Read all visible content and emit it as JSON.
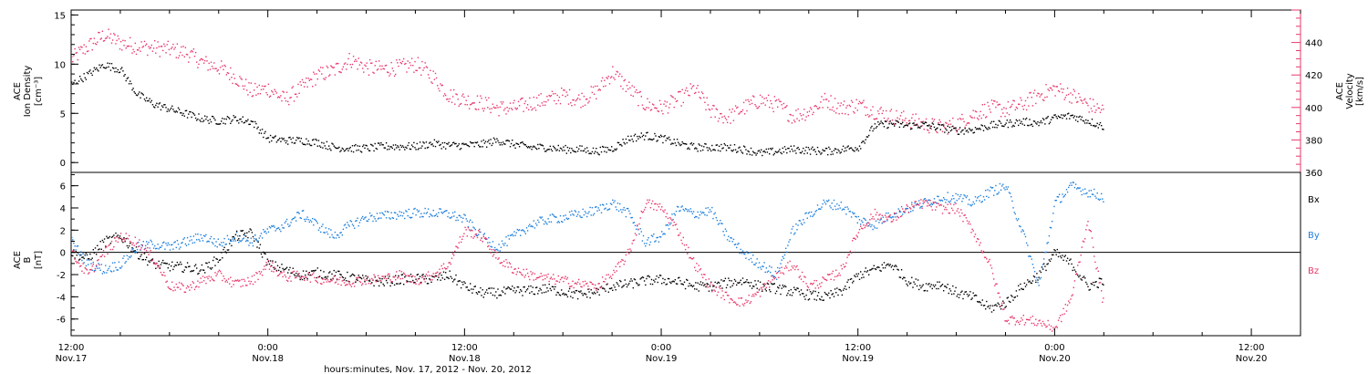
{
  "chart_data": [
    {
      "type": "scatter",
      "x_range_hours": [
        0,
        75
      ],
      "x_units": "hours since Nov.17 12:00",
      "y_left": {
        "label_lines": [
          "ACE",
          "Ion Density",
          "[cm⁻³]"
        ],
        "ylim": [
          -1,
          15.5
        ],
        "ticks": [
          0,
          5,
          10,
          15
        ],
        "color": "#000000"
      },
      "y_right": {
        "label_lines": [
          "ACE",
          "Velocity",
          "[km/s]"
        ],
        "ylim": [
          360,
          460
        ],
        "ticks": [
          360,
          380,
          400,
          420,
          440
        ],
        "color": "#e8386a"
      },
      "series": [
        {
          "name": "Ion Density",
          "axis": "left",
          "color": "#000000",
          "x": [
            0,
            1,
            2,
            3,
            4,
            5,
            6,
            7,
            8,
            9,
            10,
            11,
            12,
            13,
            14,
            15,
            16,
            17,
            18,
            19,
            20,
            21,
            22,
            23,
            24,
            25,
            26,
            27,
            28,
            29,
            30,
            31,
            32,
            33,
            34,
            35,
            36,
            37,
            38,
            39,
            40,
            41,
            42,
            43,
            44,
            45,
            46,
            47,
            48,
            49,
            50,
            51,
            52,
            53,
            54,
            55,
            56,
            57,
            58,
            59,
            60,
            61,
            62,
            63
          ],
          "y": [
            8,
            9,
            10,
            9.5,
            7,
            6,
            5.5,
            5,
            4.5,
            4.3,
            4.5,
            4.2,
            2.5,
            2.3,
            2.3,
            2.1,
            1.6,
            1.5,
            1.5,
            1.7,
            1.7,
            1.7,
            2,
            1.8,
            1.8,
            1.9,
            2.3,
            1.9,
            1.6,
            1.6,
            1.4,
            1.4,
            1.2,
            1.5,
            2.5,
            2.8,
            2.5,
            2,
            1.6,
            1.6,
            1.6,
            1.4,
            1,
            1.2,
            1.4,
            1.3,
            1.2,
            1.4,
            1.6,
            3.8,
            4,
            3.8,
            3.9,
            3.6,
            3.3,
            3.4,
            3.8,
            4,
            4.2,
            4.1,
            4.6,
            4.8,
            4.3,
            3.7
          ]
        },
        {
          "name": "Velocity",
          "axis": "right",
          "color": "#e8386a",
          "x": [
            0,
            1,
            2,
            3,
            4,
            5,
            6,
            7,
            8,
            9,
            10,
            11,
            12,
            13,
            14,
            15,
            16,
            17,
            18,
            19,
            20,
            21,
            22,
            23,
            24,
            25,
            26,
            27,
            28,
            29,
            30,
            31,
            32,
            33,
            34,
            35,
            36,
            37,
            38,
            39,
            40,
            41,
            42,
            43,
            44,
            45,
            46,
            47,
            48,
            49,
            50,
            51,
            52,
            53,
            54,
            55,
            56,
            57,
            58,
            59,
            60,
            61,
            62,
            63
          ],
          "y": [
            430,
            438,
            445,
            440,
            438,
            437,
            436,
            434,
            428,
            425,
            419,
            410,
            412,
            405,
            412,
            420,
            423,
            430,
            425,
            424,
            425,
            427,
            420,
            408,
            405,
            403,
            400,
            400,
            403,
            405,
            408,
            405,
            410,
            422,
            412,
            402,
            400,
            405,
            412,
            398,
            394,
            400,
            405,
            402,
            395,
            398,
            405,
            400,
            402,
            398,
            395,
            393,
            390,
            388,
            390,
            396,
            400,
            399,
            402,
            408,
            412,
            408,
            402,
            398
          ]
        }
      ]
    },
    {
      "type": "scatter",
      "x_range_hours": [
        0,
        75
      ],
      "y": {
        "label_lines": [
          "ACE",
          "B",
          "[nT]"
        ],
        "ylim": [
          -7.5,
          7.2
        ],
        "ticks": [
          -6,
          -4,
          -2,
          0,
          2,
          4,
          6
        ],
        "zero_line": true
      },
      "legend": [
        "Bx",
        "By",
        "Bz"
      ],
      "legend_placement": "right",
      "series": [
        {
          "name": "Bx",
          "color": "#000000",
          "x": [
            0,
            1,
            2,
            3,
            4,
            5,
            6,
            7,
            8,
            9,
            10,
            11,
            12,
            13,
            14,
            15,
            16,
            17,
            18,
            19,
            20,
            21,
            22,
            23,
            24,
            25,
            26,
            27,
            28,
            29,
            30,
            31,
            32,
            33,
            34,
            35,
            36,
            37,
            38,
            39,
            40,
            41,
            42,
            43,
            44,
            45,
            46,
            47,
            48,
            49,
            50,
            51,
            52,
            53,
            54,
            55,
            56,
            57,
            58,
            59,
            60,
            61,
            62,
            63
          ],
          "y": [
            0,
            -0.5,
            1,
            1.5,
            0,
            -1,
            -1.2,
            -1.3,
            -1.5,
            -0.5,
            1.5,
            1.8,
            -1,
            -1.5,
            -2,
            -1.8,
            -2,
            -2.2,
            -2.5,
            -2.6,
            -2.4,
            -2.3,
            -2.4,
            -2,
            -3,
            -3.6,
            -3.6,
            -3.4,
            -3.4,
            -3.2,
            -3.5,
            -3.8,
            -3.5,
            -3,
            -2.8,
            -2.5,
            -2.4,
            -2.6,
            -3,
            -3,
            -2.7,
            -2.5,
            -3,
            -3.2,
            -3.5,
            -3.8,
            -4,
            -3.4,
            -2,
            -1.5,
            -1,
            -2.5,
            -3,
            -2.8,
            -3.6,
            -4,
            -5,
            -4.5,
            -3,
            -2,
            0,
            -1,
            -3,
            -2.5
          ]
        },
        {
          "name": "By",
          "color": "#1e7fdc",
          "x": [
            0,
            1,
            2,
            3,
            4,
            5,
            6,
            7,
            8,
            9,
            10,
            11,
            12,
            13,
            14,
            15,
            16,
            17,
            18,
            19,
            20,
            21,
            22,
            23,
            24,
            25,
            26,
            27,
            28,
            29,
            30,
            31,
            32,
            33,
            34,
            35,
            36,
            37,
            38,
            39,
            40,
            41,
            42,
            43,
            44,
            45,
            46,
            47,
            48,
            49,
            50,
            51,
            52,
            53,
            54,
            55,
            56,
            57,
            58,
            59,
            60,
            61,
            62,
            63
          ],
          "y": [
            1,
            -1,
            -1.5,
            -1,
            0.5,
            0.8,
            0.5,
            1,
            1.5,
            0.8,
            1.5,
            1,
            2,
            2.5,
            3.5,
            2.5,
            1.5,
            2.5,
            3.2,
            3.3,
            3.5,
            3.6,
            3.6,
            3.5,
            3,
            1.5,
            0.5,
            1.5,
            2.5,
            3,
            3.2,
            3.5,
            3.8,
            4.5,
            3.5,
            1,
            1.5,
            4,
            3.5,
            3.8,
            1.5,
            0,
            -1,
            -2,
            2,
            3.5,
            4.5,
            4.2,
            3,
            2.5,
            3.5,
            4,
            4.5,
            5,
            5,
            4.5,
            5.5,
            6,
            2,
            -3,
            4.5,
            6,
            5.5,
            5
          ]
        },
        {
          "name": "Bz",
          "color": "#e8386a",
          "x": [
            0,
            1,
            2,
            3,
            4,
            5,
            6,
            7,
            8,
            9,
            10,
            11,
            12,
            13,
            14,
            15,
            16,
            17,
            18,
            19,
            20,
            21,
            22,
            23,
            24,
            25,
            26,
            27,
            28,
            29,
            30,
            31,
            32,
            33,
            34,
            35,
            36,
            37,
            38,
            39,
            40,
            41,
            42,
            43,
            44,
            45,
            46,
            47,
            48,
            49,
            50,
            51,
            52,
            53,
            54,
            55,
            56,
            57,
            58,
            59,
            60,
            61,
            62,
            63
          ],
          "y": [
            0,
            -2,
            0,
            1.5,
            1,
            -0.5,
            -3,
            -3.2,
            -2.5,
            -2,
            -2.8,
            -2.5,
            -1,
            -2.2,
            -2,
            -2.3,
            -2.5,
            -2.6,
            -2.4,
            -2.3,
            -2,
            -2.5,
            -2,
            -1,
            2,
            1.5,
            -0.5,
            -1.5,
            -2,
            -2.3,
            -2.5,
            -2.8,
            -3,
            -2,
            0,
            4.5,
            4,
            2,
            -1,
            -3,
            -4,
            -4.5,
            -3.5,
            -2,
            -1,
            -3,
            -2.5,
            -1.5,
            2,
            3.5,
            3,
            4,
            4.5,
            4,
            4,
            2,
            -1,
            -6,
            -6,
            -6.2,
            -6.8,
            -4,
            3,
            -5
          ]
        }
      ]
    }
  ],
  "x_axis": {
    "ticks": [
      {
        "hour": 0,
        "time": "12:00",
        "date": "Nov.17"
      },
      {
        "hour": 12,
        "time": "0:00",
        "date": "Nov.18"
      },
      {
        "hour": 24,
        "time": "12:00",
        "date": "Nov.18"
      },
      {
        "hour": 36,
        "time": "0:00",
        "date": "Nov.19"
      },
      {
        "hour": 48,
        "time": "12:00",
        "date": "Nov.19"
      },
      {
        "hour": 60,
        "time": "0:00",
        "date": "Nov.20"
      },
      {
        "hour": 72,
        "time": "12:00",
        "date": "Nov.20"
      }
    ],
    "label": "hours:minutes, Nov. 17, 2012 - Nov. 20, 2012"
  }
}
